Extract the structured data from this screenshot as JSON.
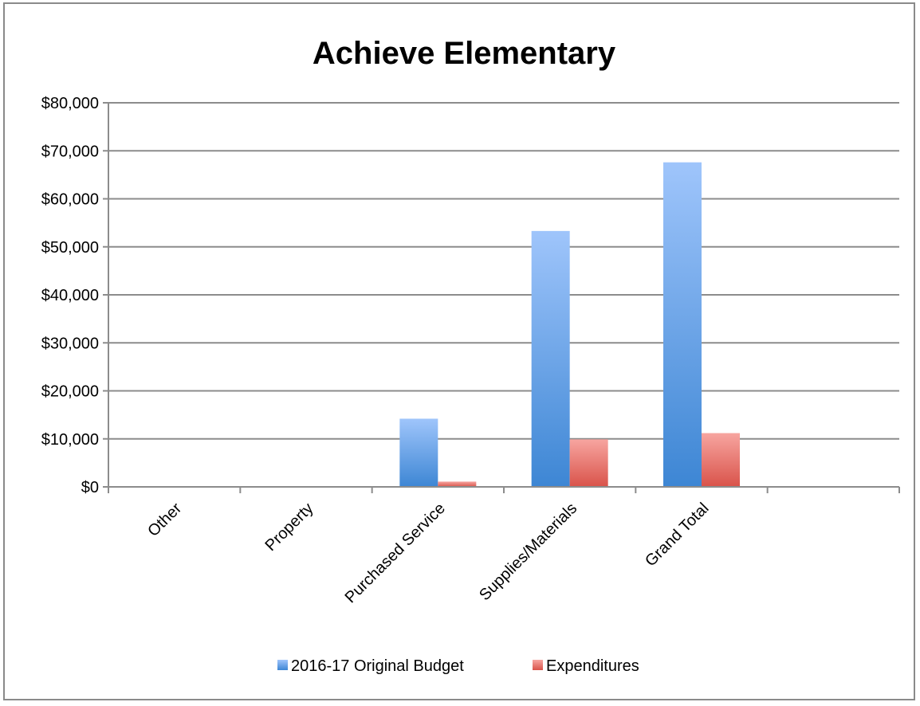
{
  "chart_data": {
    "type": "bar",
    "title": "Achieve Elementary",
    "categories": [
      "Other",
      "Property",
      "Purchased Service",
      "Supplies/Materials",
      "Grand Total",
      ""
    ],
    "series": [
      {
        "name": "2016-17 Original Budget",
        "values": [
          0,
          0,
          14200,
          53300,
          67600,
          null
        ],
        "color_top": "#9fc5fb",
        "color_bottom": "#3d86d4"
      },
      {
        "name": "Expenditures",
        "values": [
          0,
          0,
          1100,
          9900,
          11200,
          null
        ],
        "color_top": "#f7a5a0",
        "color_bottom": "#d9534a"
      }
    ],
    "ylim": [
      0,
      80000
    ],
    "yticks": [
      0,
      10000,
      20000,
      30000,
      40000,
      50000,
      60000,
      70000,
      80000
    ],
    "ytick_labels": [
      "$0",
      "$10,000",
      "$20,000",
      "$30,000",
      "$40,000",
      "$50,000",
      "$60,000",
      "$70,000",
      "$80,000"
    ],
    "grid": true,
    "legend_position": "bottom"
  }
}
